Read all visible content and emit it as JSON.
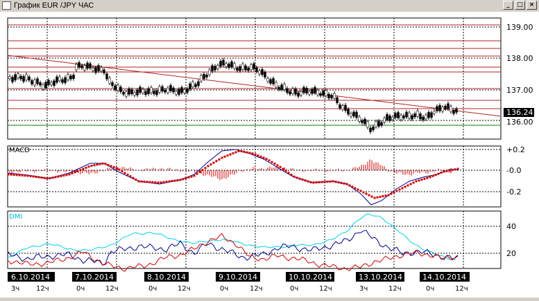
{
  "window": {
    "title": "График EUR /JPY  ЧАС",
    "minimize_glyph": "_",
    "maximize_glyph": "□",
    "close_glyph": "×"
  },
  "price_panel": {
    "y_labels": [
      "139.00",
      "138.00",
      "137.00",
      "136.00"
    ],
    "current_price": "136.24"
  },
  "macd_panel": {
    "label": "MACD",
    "y_labels": [
      "+0.2",
      "-0.0",
      "-0.2"
    ]
  },
  "dmi_panel": {
    "label": "DMI",
    "y_labels": [
      "40",
      "20"
    ]
  },
  "time_axis": {
    "dates": [
      "6.10.2014",
      "7.10.2014",
      "8.10.2014",
      "9.10.2014",
      "10.10.2014",
      "13.10.2014",
      "14.10.2014"
    ],
    "hours": [
      "3ч",
      "12ч",
      "0ч",
      "12ч",
      "0ч",
      "12ч",
      "0ч",
      "12ч",
      "0ч",
      "12ч",
      "3ч",
      "12ч",
      "0ч",
      "12ч"
    ]
  },
  "colors": {
    "candle": "#000000",
    "resistance_lines": "#b22222",
    "trend_line": "#b22222",
    "support_line": "#008000",
    "macd_signal": "#cc0000",
    "macd_line": "#00008b",
    "dmi_adx": "#00d0e0",
    "dmi_plus": "#00008b",
    "dmi_minus": "#cc0000"
  }
}
